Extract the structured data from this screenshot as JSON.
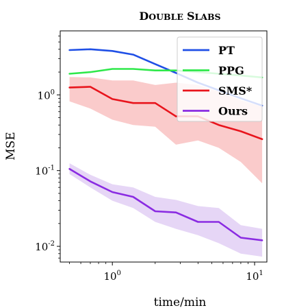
{
  "chart_data": {
    "type": "line",
    "title": {
      "cap1": "D",
      "rest1": "OUBLE",
      "cap2": "S",
      "rest2": "LABS"
    },
    "xlabel": "time/min",
    "ylabel": "MSE",
    "xscale": "log",
    "yscale": "log",
    "xlim": [
      0.43,
      12.2
    ],
    "ylim": [
      0.0062,
      7.0
    ],
    "xticks": [
      {
        "base": "10",
        "exp": "0",
        "value": 1
      },
      {
        "base": "10",
        "exp": "1",
        "value": 10
      }
    ],
    "yticks": [
      {
        "base": "10",
        "exp": "-2",
        "value": 0.01
      },
      {
        "base": "10",
        "exp": "-1",
        "value": 0.1
      },
      {
        "base": "10",
        "exp": "0",
        "value": 1
      }
    ],
    "grid": false,
    "legend_position": "top-right",
    "series": [
      {
        "name": "PT",
        "color": "#1f4fe6",
        "x": [
          0.5,
          0.7,
          1.0,
          1.4,
          2.0,
          2.8,
          4.0,
          5.6,
          8.0,
          11.3
        ],
        "y": [
          3.9,
          4.0,
          3.8,
          3.4,
          2.55,
          1.95,
          1.45,
          1.15,
          0.9,
          0.72
        ]
      },
      {
        "name": "PPG",
        "color": "#2ee84a",
        "x": [
          0.5,
          0.7,
          1.0,
          1.4,
          2.0,
          2.8,
          4.0,
          5.6,
          8.0,
          11.3
        ],
        "y": [
          1.9,
          2.0,
          2.2,
          2.2,
          2.1,
          2.1,
          2.0,
          1.9,
          1.8,
          1.7
        ],
        "band_low": [
          1.78,
          1.88,
          2.08,
          2.08,
          1.98,
          1.98,
          1.88,
          1.78,
          1.68,
          1.58
        ],
        "band_high": [
          2.02,
          2.12,
          2.32,
          2.32,
          2.22,
          2.22,
          2.12,
          2.02,
          1.92,
          1.82
        ]
      },
      {
        "name": "SMS*",
        "color": "#e8141c",
        "band_color": "#f5a0a0",
        "x": [
          0.5,
          0.7,
          1.0,
          1.4,
          2.0,
          2.8,
          4.0,
          5.6,
          8.0,
          11.3
        ],
        "y": [
          1.25,
          1.28,
          0.88,
          0.78,
          0.78,
          0.52,
          0.52,
          0.4,
          0.33,
          0.26
        ],
        "band_low": [
          0.82,
          0.66,
          0.47,
          0.4,
          0.38,
          0.22,
          0.25,
          0.2,
          0.13,
          0.068
        ],
        "band_high": [
          1.72,
          1.7,
          1.55,
          1.55,
          1.35,
          1.45,
          1.35,
          1.1,
          0.85,
          0.7
        ]
      },
      {
        "name": "Ours",
        "color": "#8a2be2",
        "band_color": "#d2b4ee",
        "x": [
          0.5,
          0.7,
          1.0,
          1.4,
          2.0,
          2.8,
          4.0,
          5.6,
          8.0,
          11.3
        ],
        "y": [
          0.105,
          0.072,
          0.052,
          0.045,
          0.029,
          0.028,
          0.021,
          0.021,
          0.013,
          0.012
        ],
        "band_low": [
          0.09,
          0.06,
          0.04,
          0.032,
          0.021,
          0.017,
          0.014,
          0.011,
          0.008,
          0.0073
        ],
        "band_high": [
          0.125,
          0.088,
          0.066,
          0.06,
          0.045,
          0.041,
          0.034,
          0.032,
          0.019,
          0.017
        ]
      }
    ]
  }
}
